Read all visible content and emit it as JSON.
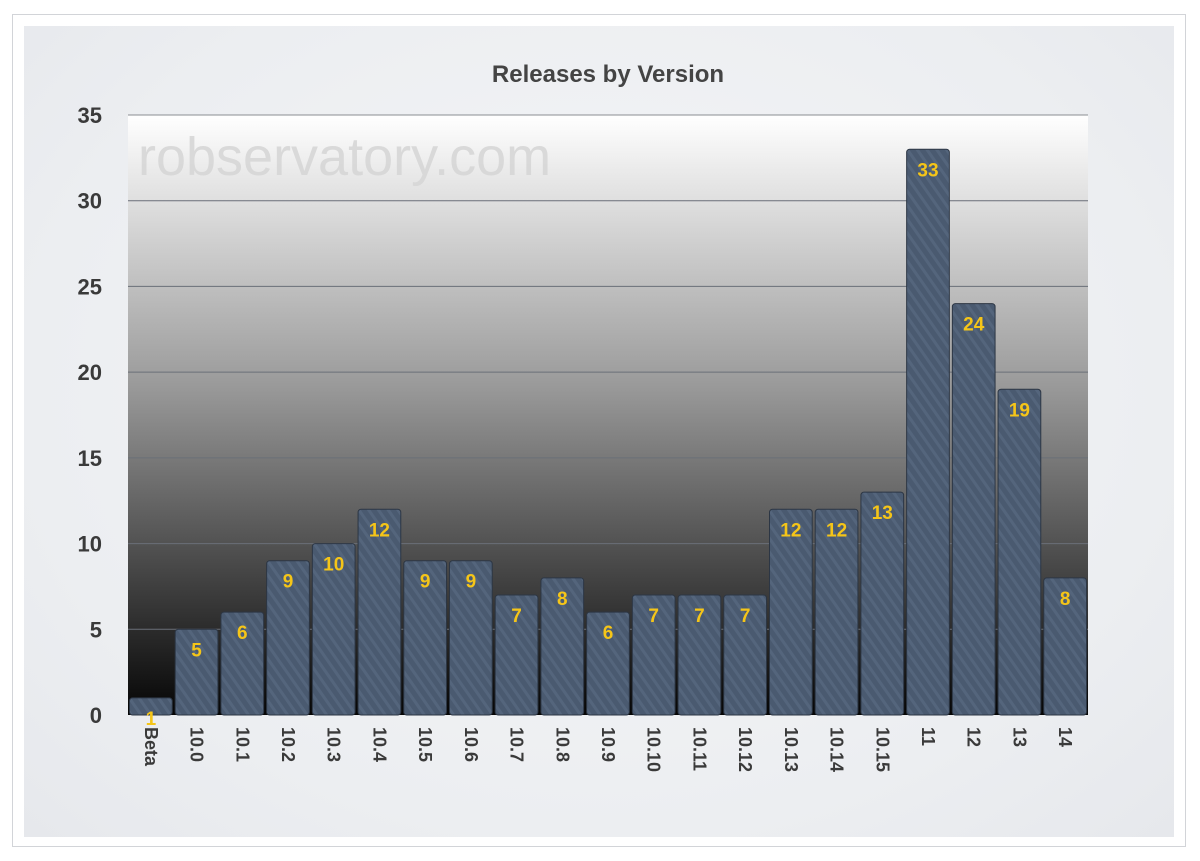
{
  "chart_data": {
    "type": "bar",
    "title": "Releases by Version",
    "watermark": "robservatory.com",
    "categories": [
      "Beta",
      "10.0",
      "10.1",
      "10.2",
      "10.3",
      "10.4",
      "10.5",
      "10.6",
      "10.7",
      "10.8",
      "10.9",
      "10.10",
      "10.11",
      "10.12",
      "10.13",
      "10.14",
      "10.15",
      "11",
      "12",
      "13",
      "14"
    ],
    "values": [
      1,
      5,
      6,
      9,
      10,
      12,
      9,
      9,
      7,
      8,
      6,
      7,
      7,
      7,
      12,
      12,
      13,
      33,
      24,
      19,
      8
    ],
    "ylim": [
      0,
      35
    ],
    "yticks": [
      0,
      5,
      10,
      15,
      20,
      25,
      30,
      35
    ],
    "grid": true,
    "legend": "none",
    "colors": {
      "bar_fill": "#4a5a70",
      "bar_stroke": "#2c3644",
      "value_label": "#f5c518",
      "axis_text": "#3a3a3a",
      "gridline": "#6a6f78"
    }
  }
}
